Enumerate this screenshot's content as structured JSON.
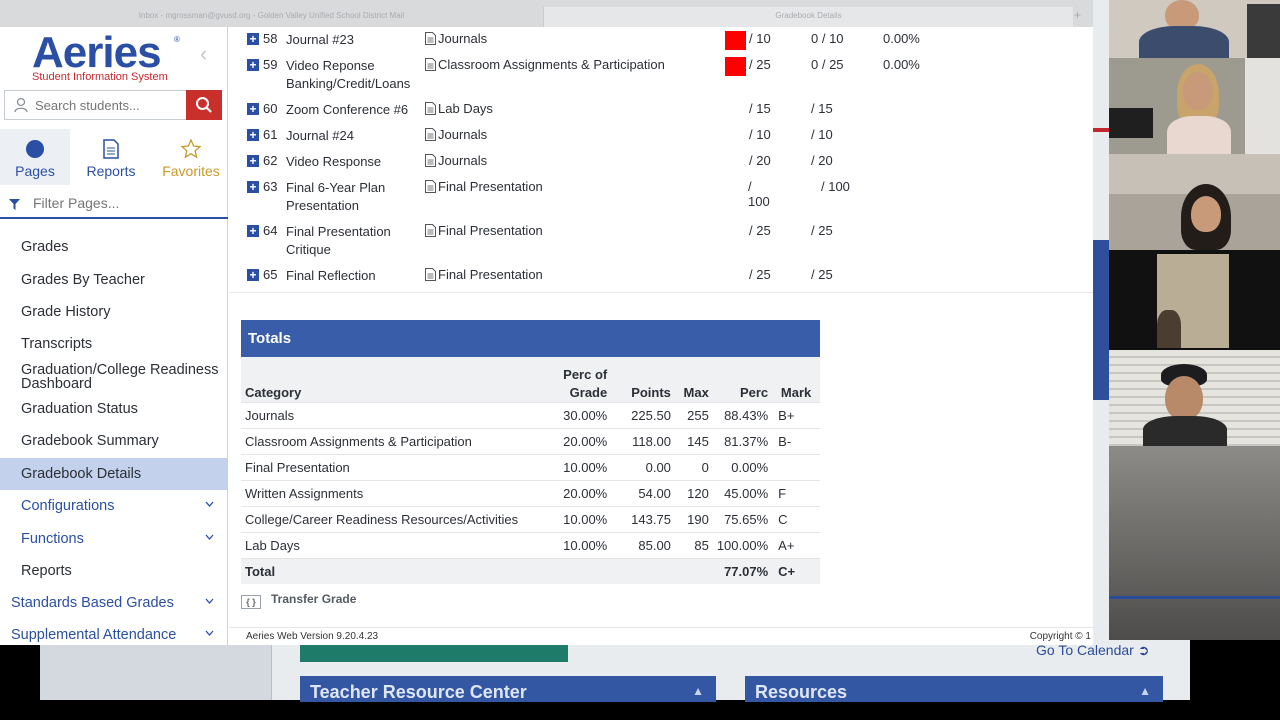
{
  "tabs": {
    "tab1": "Inbox - mgrossman@gvusd.org - Golden Valley Unified School District Mail",
    "tab2": "Gradebook Details"
  },
  "sidebar": {
    "logo_word": "Aeries",
    "logo_sub": "Student Information System",
    "search_placeholder": "Search students...",
    "nav_tabs": [
      {
        "label": "Pages"
      },
      {
        "label": "Reports"
      },
      {
        "label": "Favorites"
      }
    ],
    "filter_placeholder": "Filter Pages...",
    "menu": [
      {
        "label": "Grades"
      },
      {
        "label": "Grades By Teacher"
      },
      {
        "label": "Grade History"
      },
      {
        "label": "Transcripts"
      },
      {
        "label": "Graduation/College Readiness Dashboard"
      },
      {
        "label": "Graduation Status"
      },
      {
        "label": "Gradebook Summary"
      },
      {
        "label": "Gradebook Details"
      },
      {
        "label": "Configurations"
      },
      {
        "label": "Functions"
      },
      {
        "label": "Reports"
      },
      {
        "label": "Standards Based Grades"
      },
      {
        "label": "Supplemental Attendance"
      }
    ]
  },
  "assignments": [
    {
      "num": "58",
      "name": "Journal #23",
      "category": "Journals",
      "max": "/ 10",
      "score": "0 / 10",
      "perc": "0.00%"
    },
    {
      "num": "59",
      "name": "Video Reponse Banking/Credit/Loans",
      "category": "Classroom Assignments & Participation",
      "max": "/ 25",
      "score": "0 / 25",
      "perc": "0.00%"
    },
    {
      "num": "60",
      "name": "Zoom Conference #6",
      "category": "Lab Days",
      "max": "/ 15",
      "score": "/ 15",
      "perc": ""
    },
    {
      "num": "61",
      "name": "Journal #24",
      "category": "Journals",
      "max": "/ 10",
      "score": "/ 10",
      "perc": ""
    },
    {
      "num": "62",
      "name": "Video Response",
      "category": "Journals",
      "max": "/ 20",
      "score": "/ 20",
      "perc": ""
    },
    {
      "num": "63",
      "name": "Final 6-Year Plan Presentation",
      "category": "Final Presentation",
      "max": "/ 100",
      "score": "/ 100",
      "perc": ""
    },
    {
      "num": "64",
      "name": "Final Presentation Critique",
      "category": "Final Presentation",
      "max": "/ 25",
      "score": "/ 25",
      "perc": ""
    },
    {
      "num": "65",
      "name": "Final Reflection",
      "category": "Final Presentation",
      "max": "/ 25",
      "score": "/ 25",
      "perc": ""
    }
  ],
  "totals": {
    "title": "Totals",
    "headers": {
      "category": "Category",
      "perc_of_grade_1": "Perc of",
      "perc_of_grade_2": "Grade",
      "points": "Points",
      "max": "Max",
      "perc": "Perc",
      "mark": "Mark"
    },
    "rows": [
      {
        "category": "Journals",
        "perc_of_grade": "30.00%",
        "points": "225.50",
        "max": "255",
        "perc": "88.43%",
        "mark": "B+"
      },
      {
        "category": "Classroom Assignments & Participation",
        "perc_of_grade": "20.00%",
        "points": "118.00",
        "max": "145",
        "perc": "81.37%",
        "mark": "B-"
      },
      {
        "category": "Final Presentation",
        "perc_of_grade": "10.00%",
        "points": "0.00",
        "max": "0",
        "perc": "0.00%",
        "mark": ""
      },
      {
        "category": "Written Assignments",
        "perc_of_grade": "20.00%",
        "points": "54.00",
        "max": "120",
        "perc": "45.00%",
        "mark": "F"
      },
      {
        "category": "College/Career Readiness Resources/Activities",
        "perc_of_grade": "10.00%",
        "points": "143.75",
        "max": "190",
        "perc": "75.65%",
        "mark": "C"
      },
      {
        "category": "Lab Days",
        "perc_of_grade": "10.00%",
        "points": "85.00",
        "max": "85",
        "perc": "100.00%",
        "mark": "A+"
      }
    ],
    "total": {
      "label": "Total",
      "perc": "77.07%",
      "mark": "C+"
    }
  },
  "transfer": {
    "box": "{ }",
    "label": "Transfer Grade"
  },
  "footer": {
    "version": "Aeries Web Version 9.20.4.23",
    "copyright": "Copyright © 1"
  },
  "background": {
    "goto_calendar": "Go To Calendar",
    "teacher_resource": "Teacher Resource Center",
    "resources": "Resources"
  },
  "colors": {
    "aeries_blue": "#2a4fa5",
    "totals_header": "#3a5da9",
    "missing_red": "#ff0000",
    "search_red": "#c9302c",
    "active_menu": "#c3d1ec"
  }
}
